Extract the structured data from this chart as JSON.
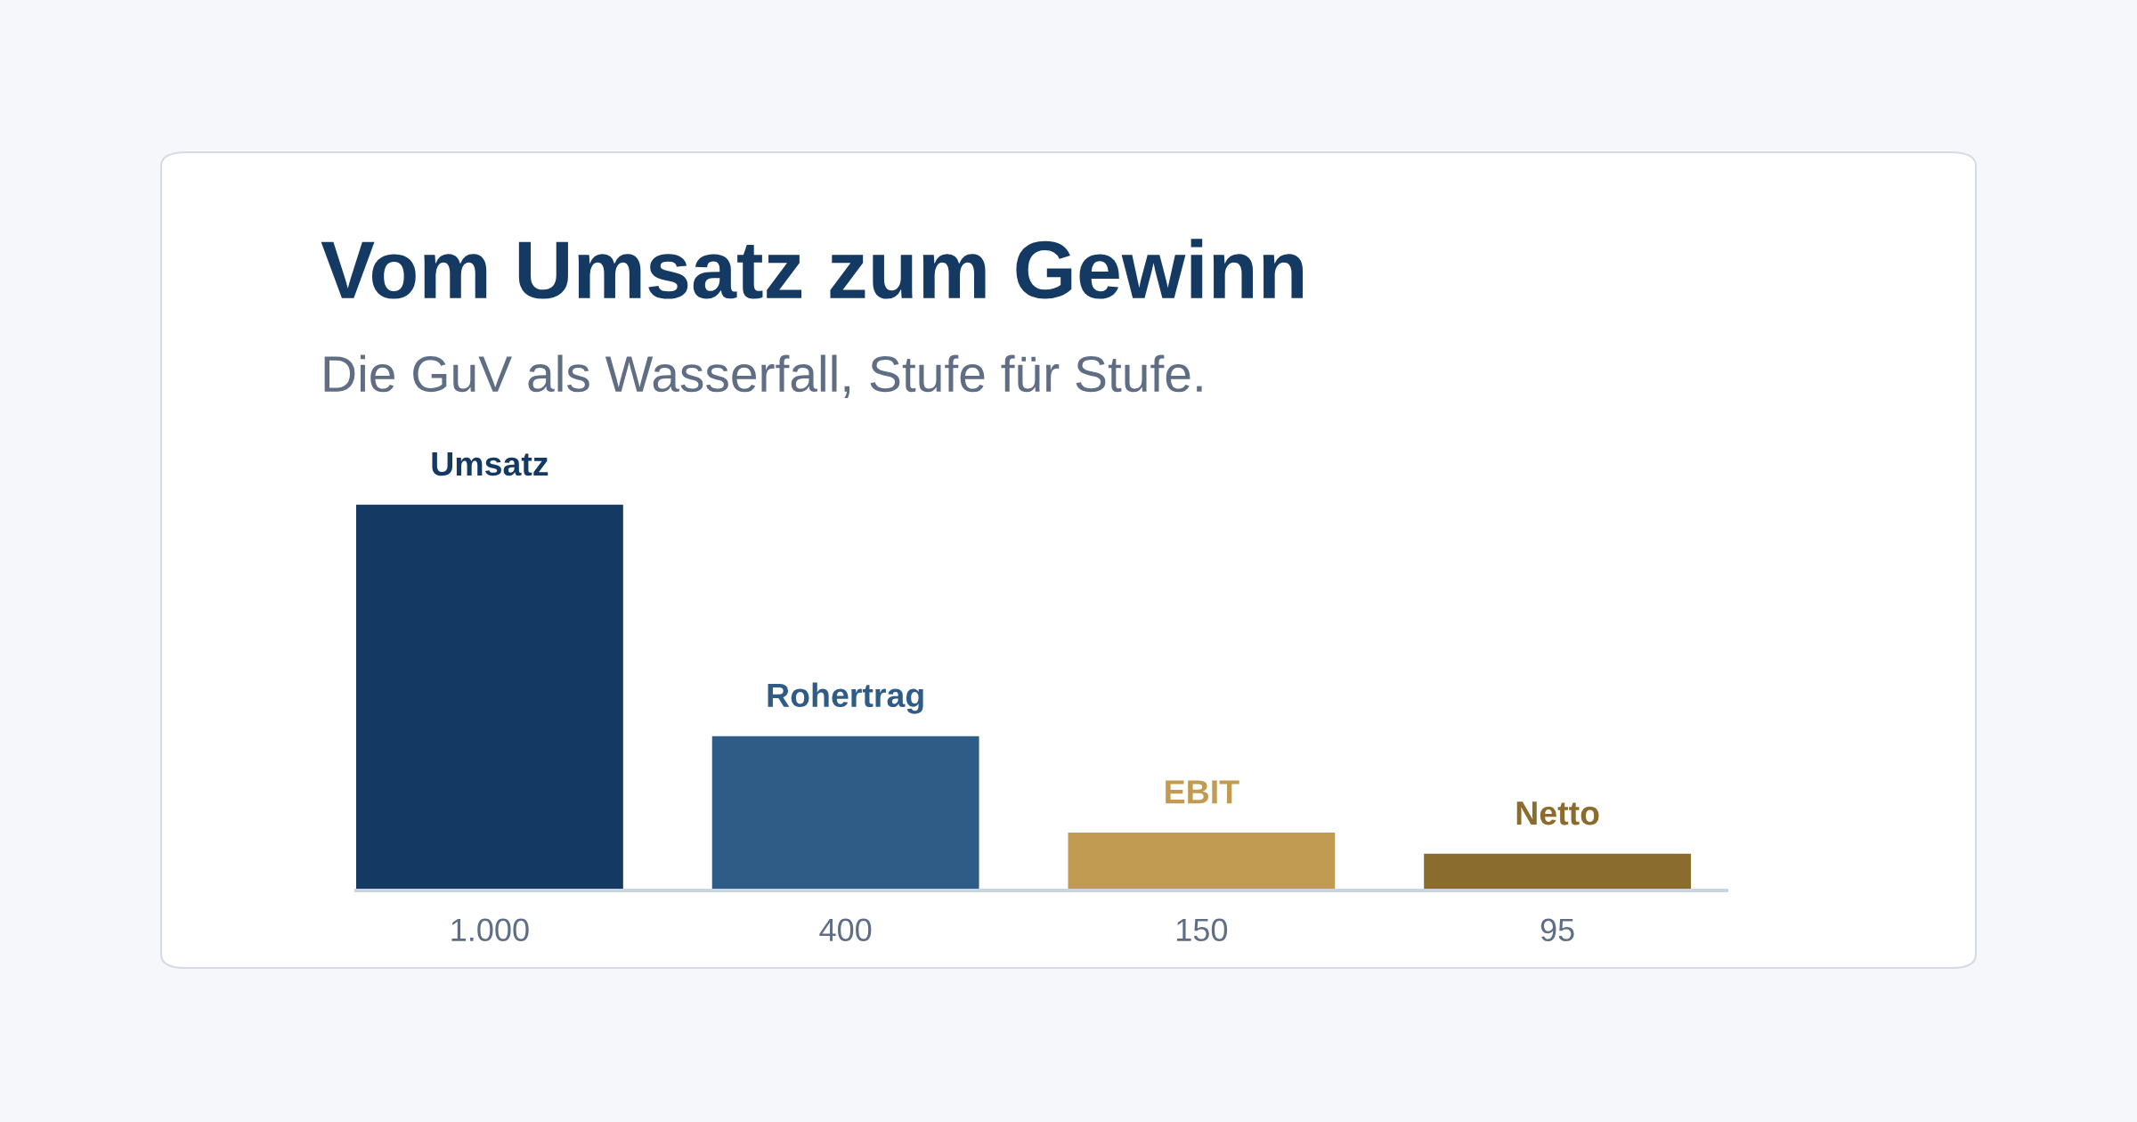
{
  "chart_data": {
    "type": "bar",
    "title": "Vom Umsatz zum Gewinn",
    "subtitle": "Die GuV als Wasserfall, Stufe für Stufe.",
    "categories": [
      "Umsatz",
      "Rohertrag",
      "EBIT",
      "Netto"
    ],
    "values": [
      1000,
      400,
      150,
      95
    ],
    "colors": [
      "#143962",
      "#2f5b87",
      "#c29b53",
      "#8a6c2f"
    ],
    "value_labels": [
      "1.000",
      "400",
      "150",
      "95"
    ]
  }
}
